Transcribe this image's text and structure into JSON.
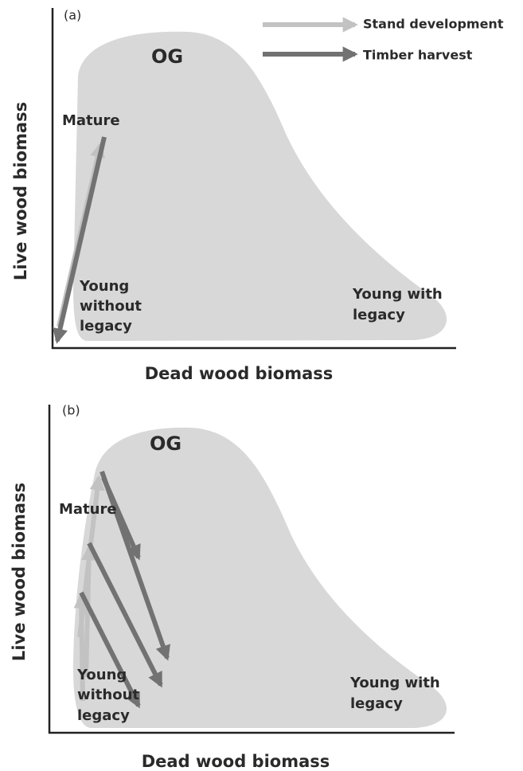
{
  "legend": [
    {
      "label": "Stand development"
    },
    {
      "label": "Timber harvest"
    }
  ],
  "panels": [
    {
      "label": "(a)",
      "y_axis_label": "Live wood biomass",
      "x_axis_label": "Dead wood biomass",
      "og": "OG",
      "mature": "Mature",
      "young_without_legacy": [
        "Young",
        "without",
        "legacy"
      ],
      "young_with_legacy": [
        "Young with",
        "legacy"
      ]
    },
    {
      "label": "(b)",
      "y_axis_label": "Live wood biomass",
      "x_axis_label": "Dead wood biomass",
      "og": "OG",
      "mature": "Mature",
      "young_without_legacy": [
        "Young",
        "without",
        "legacy"
      ],
      "young_with_legacy": [
        "Young with",
        "legacy"
      ]
    }
  ]
}
